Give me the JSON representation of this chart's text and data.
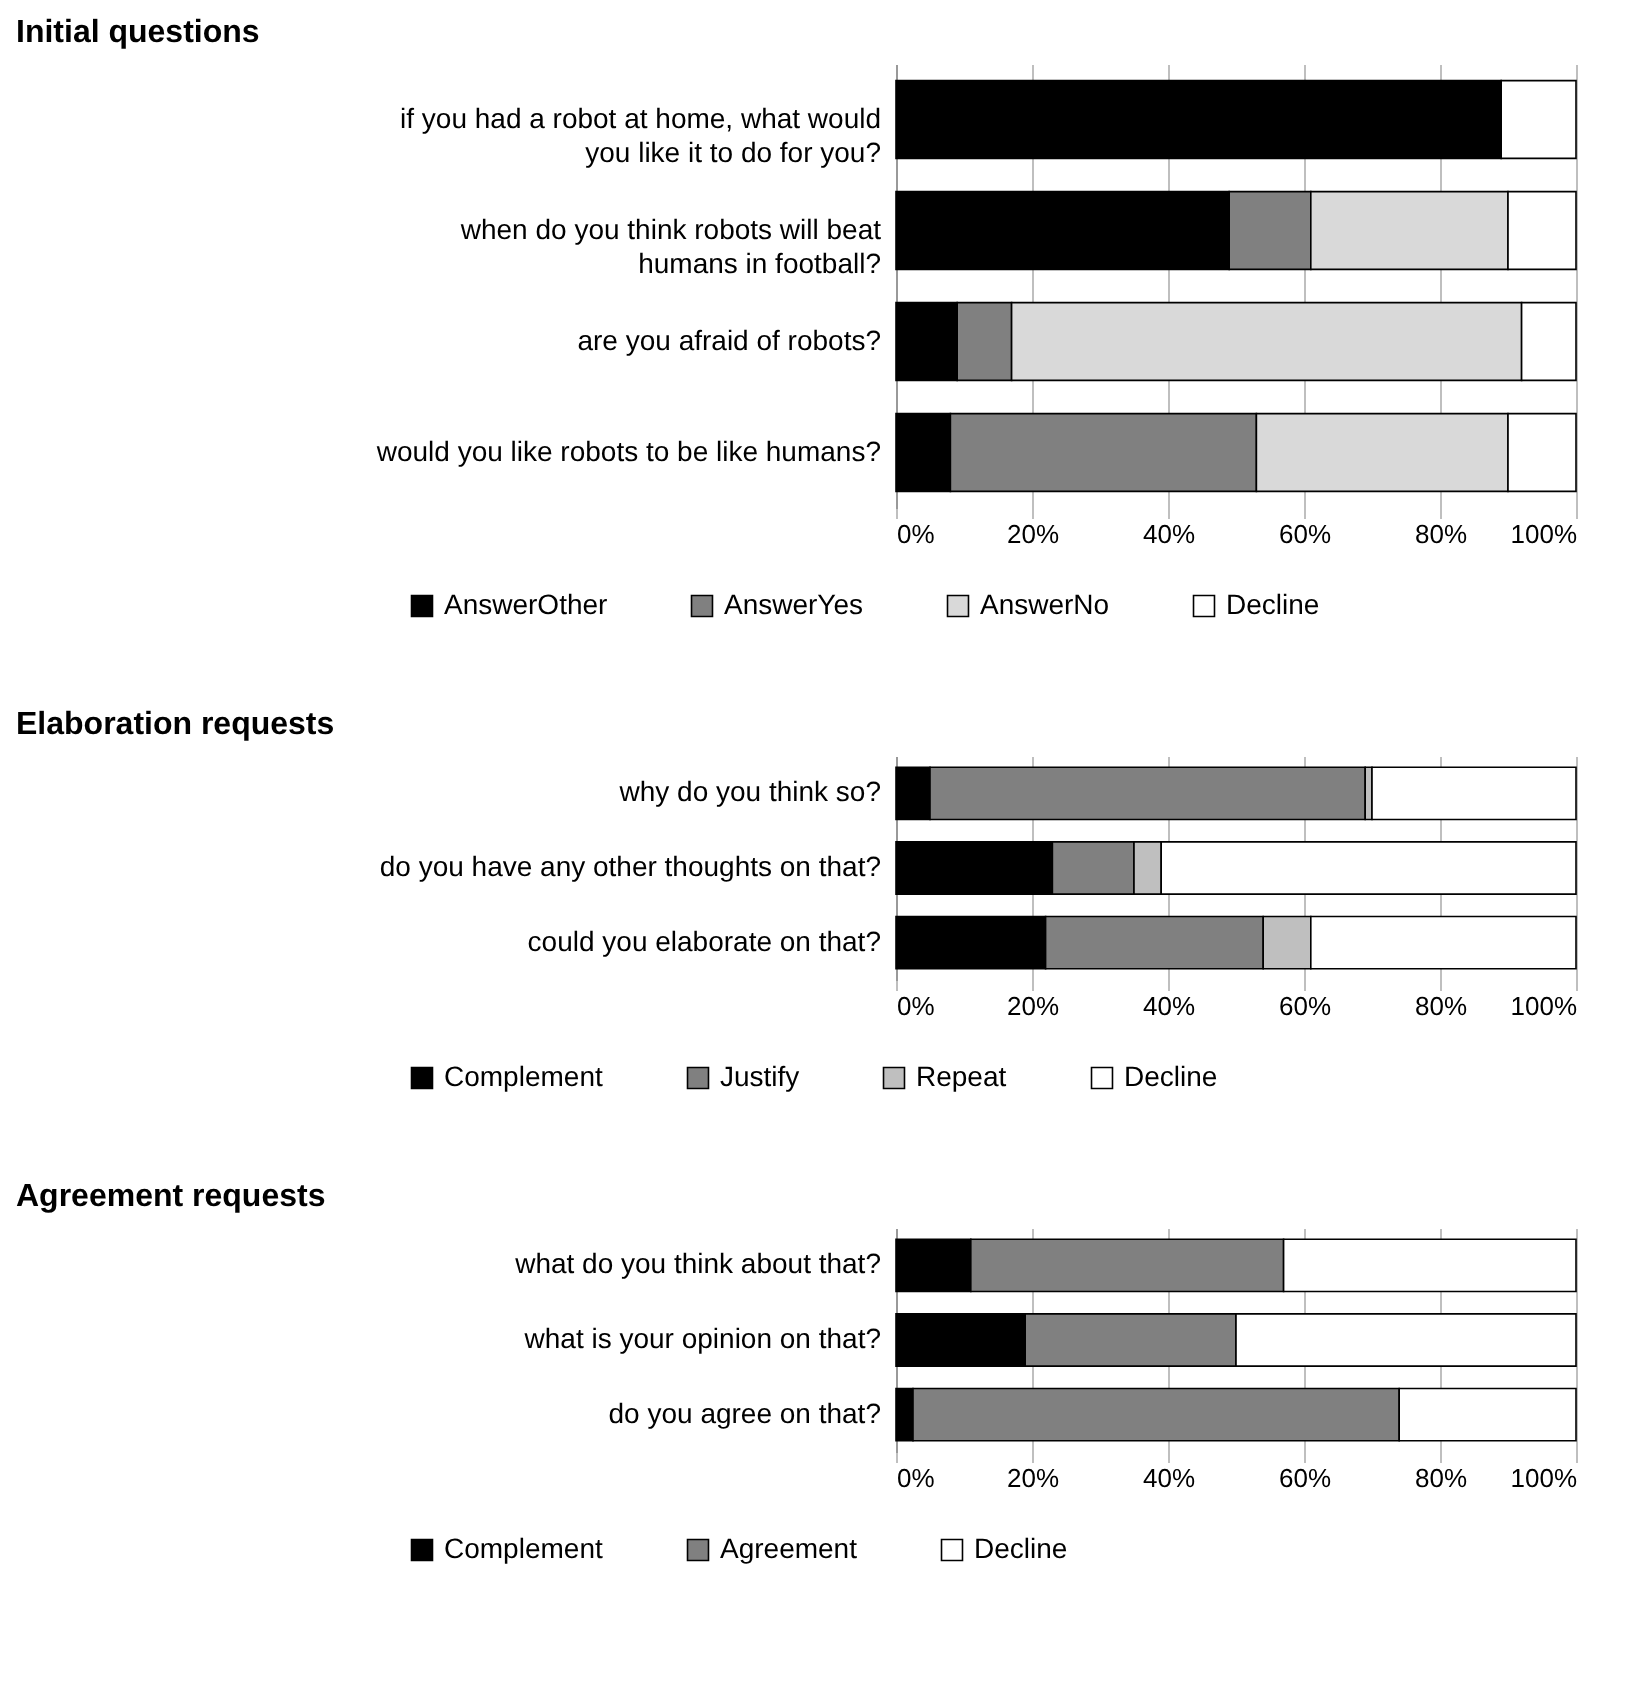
{
  "chart_data": [
    {
      "type": "bar",
      "orientation": "horizontal",
      "stacked": true,
      "title": "Initial questions",
      "categories": [
        "if you had a robot at home, what would you like it to do for you?",
        "when do you think robots will beat humans in football?",
        "are you afraid of robots?",
        "would you like robots to be like humans?"
      ],
      "series": [
        {
          "name": "AnswerOther",
          "color": "#000000",
          "values": [
            89,
            49,
            9,
            8
          ]
        },
        {
          "name": "AnswerYes",
          "color": "#808080",
          "values": [
            0,
            12,
            8,
            45
          ]
        },
        {
          "name": "AnswerNo",
          "color": "#d9d9d9",
          "values": [
            0,
            29,
            75,
            37
          ]
        },
        {
          "name": "Decline",
          "color": "#ffffff",
          "values": [
            11,
            10,
            8,
            10
          ]
        }
      ],
      "xlim": [
        0,
        100
      ],
      "xticks": [
        {
          "value": 0,
          "label": "0%"
        },
        {
          "value": 20,
          "label": "20%"
        },
        {
          "value": 40,
          "label": "40%"
        },
        {
          "value": 60,
          "label": "60%"
        },
        {
          "value": 80,
          "label": "80%"
        },
        {
          "value": 100,
          "label": "100%"
        }
      ],
      "grid": "x",
      "legend": "bottom"
    },
    {
      "type": "bar",
      "orientation": "horizontal",
      "stacked": true,
      "title": "Elaboration requests",
      "categories": [
        "why do you think so?",
        "do you have any other thoughts on that?",
        "could you elaborate on that?"
      ],
      "series": [
        {
          "name": "Complement",
          "color": "#000000",
          "values": [
            5,
            23,
            22
          ]
        },
        {
          "name": "Justify",
          "color": "#808080",
          "values": [
            64,
            12,
            32
          ]
        },
        {
          "name": "Repeat",
          "color": "#bfbfbf",
          "values": [
            1,
            4,
            7
          ]
        },
        {
          "name": "Decline",
          "color": "#ffffff",
          "values": [
            30,
            61,
            39
          ]
        }
      ],
      "xlim": [
        0,
        100
      ],
      "xticks": [
        {
          "value": 0,
          "label": "0%"
        },
        {
          "value": 20,
          "label": "20%"
        },
        {
          "value": 40,
          "label": "40%"
        },
        {
          "value": 60,
          "label": "60%"
        },
        {
          "value": 80,
          "label": "80%"
        },
        {
          "value": 100,
          "label": "100%"
        }
      ],
      "grid": "x",
      "legend": "bottom"
    },
    {
      "type": "bar",
      "orientation": "horizontal",
      "stacked": true,
      "title": "Agreement requests",
      "categories": [
        "what do you think about that?",
        "what is your opinion on that?",
        "do you agree on that?"
      ],
      "series": [
        {
          "name": "Complement",
          "color": "#000000",
          "values": [
            11,
            19,
            2.5
          ]
        },
        {
          "name": "Agreement",
          "color": "#808080",
          "values": [
            46,
            31,
            71.5
          ]
        },
        {
          "name": "Decline",
          "color": "#ffffff",
          "values": [
            43,
            50,
            26
          ]
        }
      ],
      "xlim": [
        0,
        100
      ],
      "xticks": [
        {
          "value": 0,
          "label": "0%"
        },
        {
          "value": 20,
          "label": "20%"
        },
        {
          "value": 40,
          "label": "40%"
        },
        {
          "value": 60,
          "label": "60%"
        },
        {
          "value": 80,
          "label": "80%"
        },
        {
          "value": 100,
          "label": "100%"
        }
      ],
      "grid": "x",
      "legend": "bottom"
    }
  ]
}
